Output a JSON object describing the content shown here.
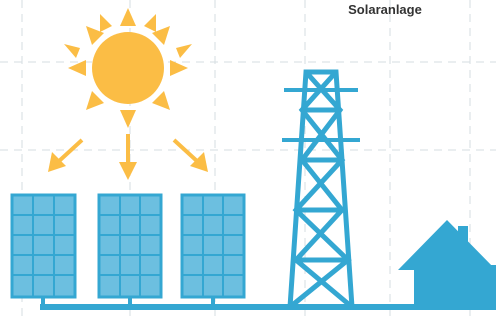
{
  "title": "Solaranlage"
}
